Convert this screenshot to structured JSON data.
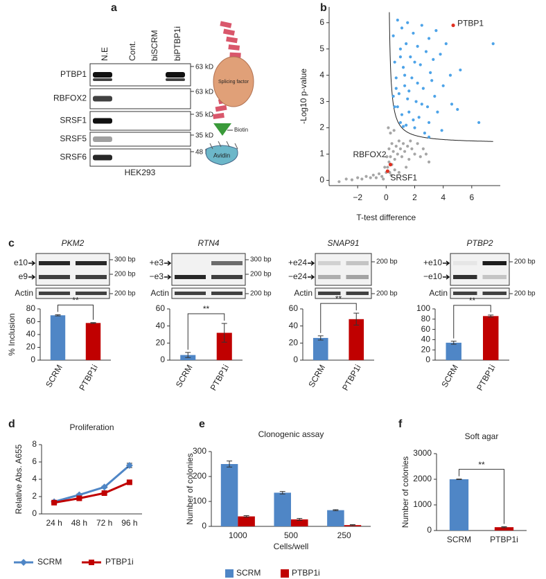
{
  "panel_labels": [
    "a",
    "b",
    "c",
    "d",
    "e",
    "f"
  ],
  "blot": {
    "lanes": [
      "N.E",
      "Cont.",
      "biSCRM",
      "biPTBP1i"
    ],
    "rows": [
      {
        "protein": "PTBP1",
        "size": "63 kD"
      },
      {
        "protein": "RBFOX2",
        "size": "63 kD"
      },
      {
        "protein": "SRSF1",
        "size": "35 kD"
      },
      {
        "protein": "SRSF5",
        "size": "35 kD"
      },
      {
        "protein": "SRSF6",
        "size": "48 kD"
      }
    ],
    "cell_line": "HEK293",
    "diagram": {
      "factor": "Splicing factor",
      "biotin": "Biotin",
      "avidin": "Avidin"
    }
  },
  "gels": [
    {
      "gene": "PKM2",
      "bands": [
        "e10",
        "e9"
      ],
      "sizes": [
        "300 bp",
        "200 bp"
      ],
      "control": "Actin",
      "control_size": "200 bp"
    },
    {
      "gene": "RTN4",
      "bands": [
        "+e3",
        "−e3"
      ],
      "sizes": [
        "300 bp",
        "200 bp"
      ],
      "control": "Actin",
      "control_size": "200 bp"
    },
    {
      "gene": "SNAP91",
      "bands": [
        "+e24",
        "−e24"
      ],
      "sizes": [
        "200 bp"
      ],
      "control": "Actin",
      "control_size": "200 bp"
    },
    {
      "gene": "PTBP2",
      "bands": [
        "+e10",
        "−e10"
      ],
      "sizes": [
        "200 bp"
      ],
      "control": "Actin",
      "control_size": "200 bp"
    }
  ],
  "chart_data": [
    {
      "type": "scatter",
      "xlabel": "T-test difference",
      "ylabel": "-Log10 p-value",
      "xlim": [
        -4,
        8
      ],
      "ylim": [
        -0.2,
        6.6
      ],
      "xticks": [
        {
          "value": -2,
          "label": "−2"
        },
        0,
        2,
        4,
        6
      ],
      "yticks": [
        0,
        1,
        2,
        3,
        4,
        5,
        6
      ],
      "series": [
        {
          "color": "#a6a6a6",
          "x": [
            -3.3,
            -2.8,
            -2.4,
            -2.0,
            -1.7,
            -1.4,
            -1.1,
            -0.9,
            -0.7,
            -0.5,
            -0.3,
            -0.2,
            0.0,
            0.1,
            0.2,
            0.3,
            0.4,
            0.5,
            0.6,
            0.7,
            0.8,
            0.9,
            1.0,
            1.1,
            1.2,
            1.3,
            1.5,
            1.6,
            1.8,
            2.0,
            2.2,
            2.4,
            2.6,
            2.8,
            3.0,
            0.2,
            0.3,
            0.4,
            0.15,
            0.25,
            0.35,
            0.6,
            0.9,
            1.4,
            -0.1,
            0.05,
            1.7,
            0.55
          ],
          "values": [
            -0.05,
            0.05,
            0.02,
            0.1,
            0.05,
            0.15,
            0.1,
            0.2,
            0.1,
            0.25,
            0.15,
            0.05,
            0.3,
            0.5,
            0.7,
            0.9,
            0.6,
            1.1,
            0.8,
            1.3,
            1.0,
            1.5,
            1.2,
            0.9,
            1.4,
            1.1,
            1.3,
            0.8,
            1.2,
            1.0,
            1.4,
            0.9,
            1.2,
            1.0,
            0.7,
            1.2,
            1.8,
            1.4,
            2.0,
            0.3,
            0.2,
            0.4,
            0.3,
            0.5,
            0.5,
            0.9,
            1.5,
            1.9
          ]
        },
        {
          "color": "#4da3e8",
          "x": [
            0.5,
            0.8,
            1.1,
            1.5,
            1.9,
            2.5,
            3.0,
            3.5,
            4.2,
            1.0,
            1.4,
            2.2,
            2.8,
            3.3,
            0.6,
            1.2,
            1.7,
            2.4,
            3.1,
            3.8,
            4.5,
            0.7,
            1.3,
            1.8,
            2.6,
            3.4,
            4.0,
            5.2,
            0.9,
            1.5,
            2.1,
            2.9,
            3.6,
            4.6,
            0.8,
            1.1,
            1.6,
            2.3,
            3.0,
            0.6,
            1.0,
            1.4,
            2.0,
            1.2,
            2.7,
            3.9,
            5.0,
            6.5,
            7.5,
            0.5,
            1.6,
            2.2,
            2.5,
            3.2,
            1.9,
            3.0,
            0.7,
            1.3,
            2.0,
            1.0
          ],
          "values": [
            5.5,
            6.1,
            5.8,
            6.0,
            5.6,
            5.9,
            5.4,
            5.7,
            5.2,
            5.0,
            5.2,
            5.1,
            4.9,
            4.6,
            4.5,
            4.3,
            4.7,
            4.4,
            4.1,
            4.8,
            4.0,
            3.9,
            3.6,
            3.9,
            3.5,
            3.2,
            3.6,
            4.2,
            3.3,
            3.1,
            3.0,
            2.8,
            2.6,
            2.9,
            2.8,
            2.5,
            2.6,
            2.4,
            2.2,
            2.8,
            2.2,
            2.1,
            2.0,
            2.05,
            1.8,
            1.9,
            2.7,
            2.2,
            5.2,
            3.2,
            3.4,
            3.7,
            2.9,
            3.8,
            2.3,
            1.65,
            3.5,
            4.0,
            4.5,
            4.7
          ]
        },
        {
          "color": "#e03020",
          "x": [
            4.7,
            0.3,
            0.1
          ],
          "values": [
            5.9,
            0.6,
            0.35
          ]
        }
      ],
      "annotations": [
        "PTBP1",
        "RBFOX2",
        "SRSF1"
      ]
    },
    {
      "type": "bar",
      "ylabel": "% Inclusion",
      "categories": [
        "SCRM",
        "PTBP1i"
      ],
      "values": [
        70,
        58
      ],
      "errors": [
        1,
        0.6
      ],
      "colors": [
        "#4f86c6",
        "#c00000"
      ],
      "ylim": [
        0,
        80
      ],
      "yticks": [
        0,
        20,
        40,
        60,
        80
      ],
      "significance": "**"
    },
    {
      "type": "bar",
      "categories": [
        "SCRM",
        "PTBP1i"
      ],
      "values": [
        6,
        32
      ],
      "errors": [
        3,
        11
      ],
      "colors": [
        "#4f86c6",
        "#c00000"
      ],
      "ylim": [
        0,
        60
      ],
      "yticks": [
        0,
        20,
        40,
        60
      ],
      "significance": "**"
    },
    {
      "type": "bar",
      "categories": [
        "SCRM",
        "PTBP1i"
      ],
      "values": [
        26,
        48
      ],
      "errors": [
        2.5,
        7
      ],
      "colors": [
        "#4f86c6",
        "#c00000"
      ],
      "ylim": [
        0,
        60
      ],
      "yticks": [
        0,
        20,
        40,
        60
      ],
      "significance": "**"
    },
    {
      "type": "bar",
      "categories": [
        "SCRM",
        "PTBP1i"
      ],
      "values": [
        34,
        86
      ],
      "errors": [
        3,
        2
      ],
      "colors": [
        "#4f86c6",
        "#c00000"
      ],
      "ylim": [
        0,
        100
      ],
      "yticks": [
        0,
        20,
        40,
        60,
        80,
        100
      ],
      "significance": "**"
    },
    {
      "type": "line",
      "title": "Proliferation",
      "ylabel": "Relative Abs. A655",
      "categories": [
        "24 h",
        "48 h",
        "72 h",
        "96 h"
      ],
      "series": [
        {
          "name": "SCRM",
          "color": "#4f86c6",
          "marker": "diamond",
          "values": [
            1.4,
            2.2,
            3.1,
            5.6
          ],
          "errors": [
            0.1,
            0.1,
            0.1,
            0.25
          ]
        },
        {
          "name": "PTBP1i",
          "color": "#c00000",
          "marker": "square",
          "values": [
            1.3,
            1.8,
            2.4,
            3.65
          ],
          "errors": [
            0.1,
            0.1,
            0.1,
            0.1
          ]
        }
      ],
      "ylim": [
        0,
        8
      ],
      "yticks": [
        0,
        2,
        4,
        6,
        8
      ]
    },
    {
      "type": "grouped_bar",
      "title": "Clonogenic assay",
      "xlabel": "Cells/well",
      "ylabel": "Number of colonies",
      "categories": [
        "1000",
        "500",
        "250"
      ],
      "series": [
        {
          "name": "SCRM",
          "color": "#4f86c6",
          "values": [
            250,
            135,
            65
          ],
          "errors": [
            12,
            5,
            2
          ]
        },
        {
          "name": "PTBP1i",
          "color": "#c00000",
          "values": [
            40,
            28,
            5
          ],
          "errors": [
            3,
            4,
            2
          ]
        }
      ],
      "ylim": [
        0,
        300
      ],
      "yticks": [
        0,
        100,
        200,
        300
      ]
    },
    {
      "type": "bar",
      "title": "Soft agar",
      "ylabel": "Number of colonies",
      "categories": [
        "SCRM",
        "PTBP1i"
      ],
      "values": [
        2000,
        130
      ],
      "errors": [
        10,
        20
      ],
      "colors": [
        "#4f86c6",
        "#c00000"
      ],
      "ylim": [
        0,
        3000
      ],
      "yticks": [
        0,
        1000,
        2000,
        3000
      ],
      "significance": "**"
    }
  ]
}
